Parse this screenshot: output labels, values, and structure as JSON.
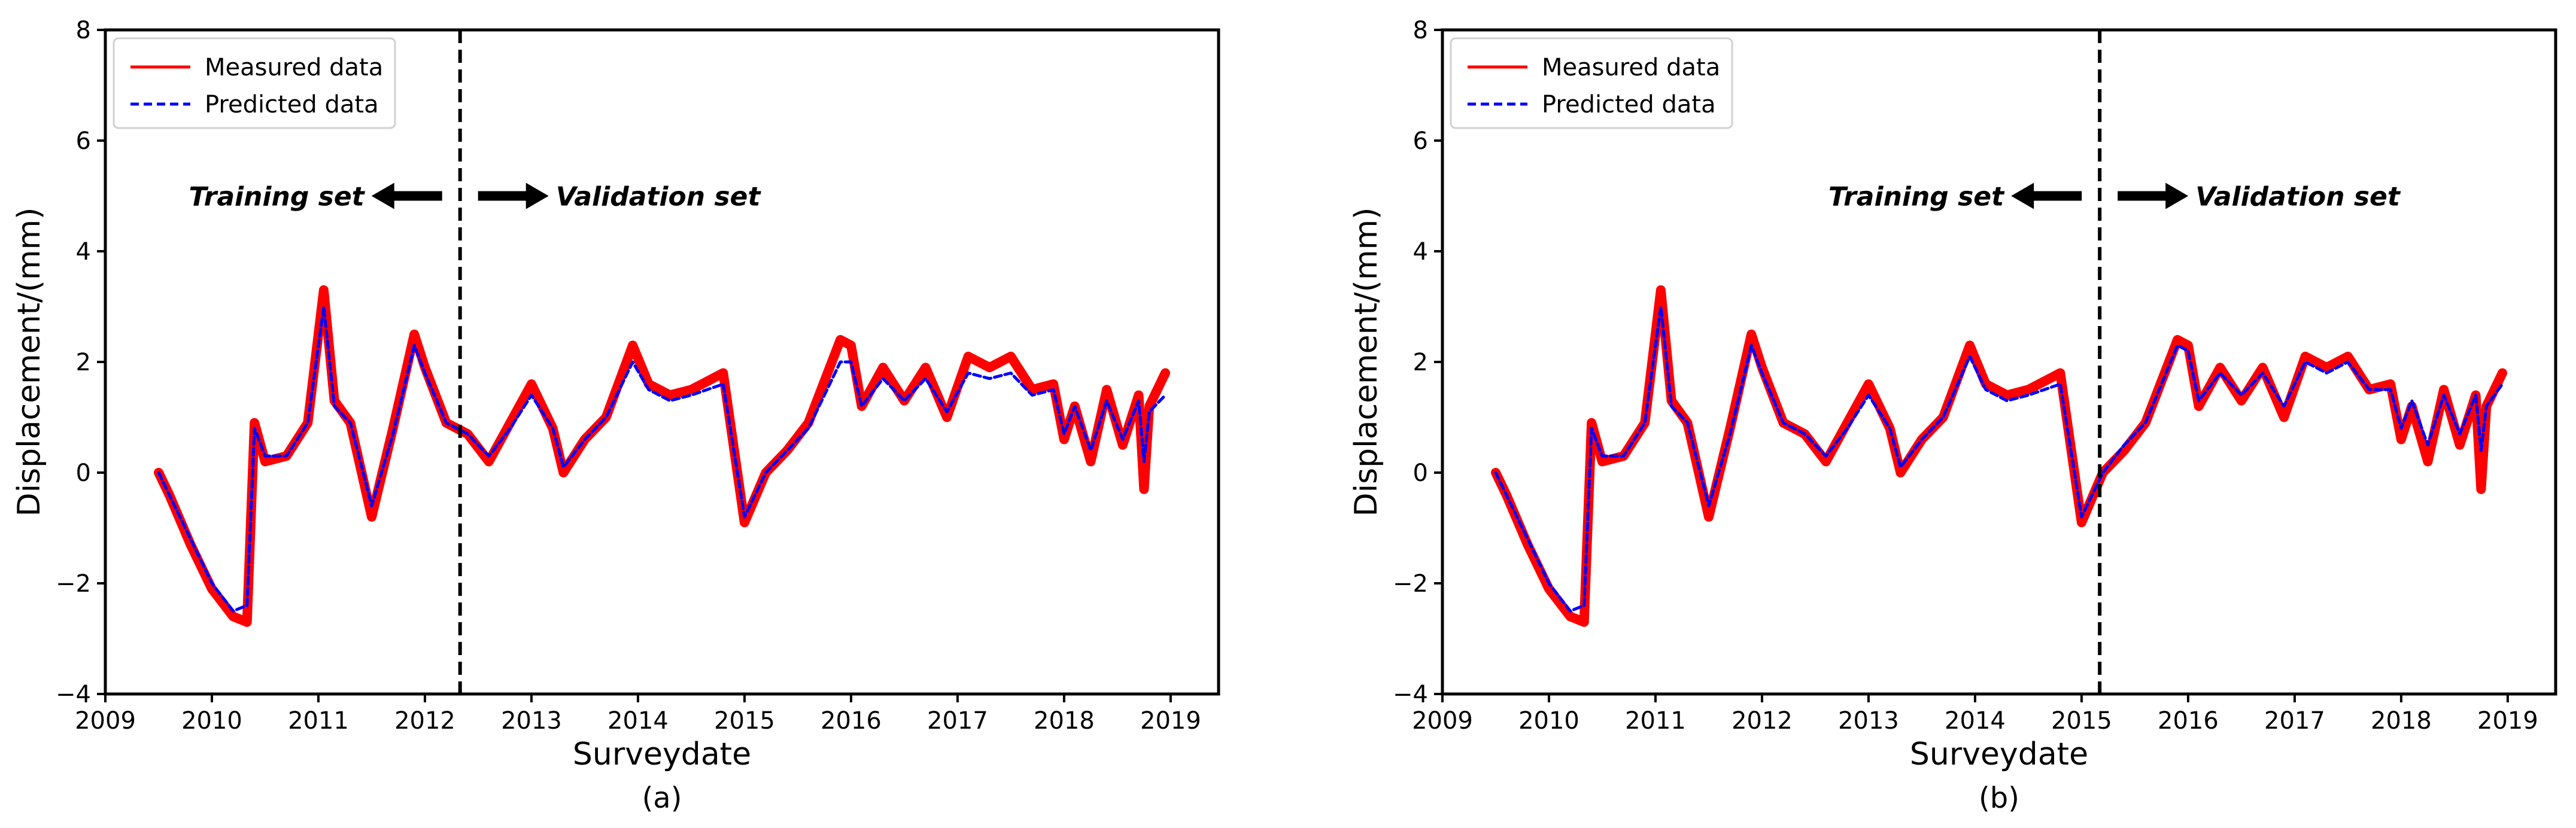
{
  "chart_data": [
    {
      "type": "line",
      "panel": "(a)",
      "caption": "(a)",
      "xlabel": "Surveydate",
      "ylabel": "Displacement/(mm)",
      "xlim": [
        2009,
        2019.45
      ],
      "ylim": [
        -4,
        8
      ],
      "xticks": [
        "2009",
        "2010",
        "2011",
        "2012",
        "2013",
        "2014",
        "2015",
        "2016",
        "2017",
        "2018",
        "2019"
      ],
      "yticks": [
        "−4",
        "−2",
        "0",
        "2",
        "4",
        "6",
        "8"
      ],
      "split_x": 2012.33,
      "legend": [
        "Measured data",
        "Predicted data"
      ],
      "annotations": {
        "left": "Training set",
        "right": "Validation set"
      },
      "series": [
        {
          "name": "Measured data",
          "color": "#ff0000",
          "style": "solid",
          "x": [
            2009.5,
            2009.6,
            2009.8,
            2010.0,
            2010.2,
            2010.33,
            2010.4,
            2010.5,
            2010.7,
            2010.9,
            2011.05,
            2011.15,
            2011.3,
            2011.5,
            2011.7,
            2011.9,
            2012.0,
            2012.2,
            2012.4,
            2012.6,
            2012.8,
            2013.0,
            2013.2,
            2013.3,
            2013.5,
            2013.7,
            2013.95,
            2014.1,
            2014.3,
            2014.5,
            2014.8,
            2015.0,
            2015.2,
            2015.4,
            2015.6,
            2015.9,
            2016.0,
            2016.1,
            2016.3,
            2016.5,
            2016.7,
            2016.9,
            2017.1,
            2017.3,
            2017.5,
            2017.7,
            2017.9,
            2018.0,
            2018.1,
            2018.25,
            2018.4,
            2018.55,
            2018.7,
            2018.75,
            2018.8,
            2018.95
          ],
          "y": [
            0.0,
            -0.4,
            -1.3,
            -2.1,
            -2.6,
            -2.7,
            0.9,
            0.2,
            0.3,
            0.9,
            3.3,
            1.3,
            0.9,
            -0.8,
            0.8,
            2.5,
            1.9,
            0.9,
            0.7,
            0.2,
            0.9,
            1.6,
            0.8,
            0.0,
            0.6,
            1.0,
            2.3,
            1.6,
            1.4,
            1.5,
            1.8,
            -0.9,
            0.0,
            0.4,
            0.9,
            2.4,
            2.3,
            1.2,
            1.9,
            1.3,
            1.9,
            1.0,
            2.1,
            1.9,
            2.1,
            1.5,
            1.6,
            0.6,
            1.2,
            0.2,
            1.5,
            0.5,
            1.4,
            -0.3,
            1.2,
            1.8
          ]
        },
        {
          "name": "Predicted data",
          "color": "#0000ff",
          "style": "dashed",
          "x": [
            2009.5,
            2009.6,
            2009.8,
            2010.0,
            2010.2,
            2010.33,
            2010.4,
            2010.5,
            2010.7,
            2010.9,
            2011.05,
            2011.15,
            2011.3,
            2011.5,
            2011.7,
            2011.9,
            2012.0,
            2012.2,
            2012.4,
            2012.6,
            2012.8,
            2013.0,
            2013.2,
            2013.3,
            2013.5,
            2013.7,
            2013.95,
            2014.1,
            2014.3,
            2014.5,
            2014.8,
            2015.0,
            2015.2,
            2015.4,
            2015.6,
            2015.9,
            2016.0,
            2016.1,
            2016.3,
            2016.5,
            2016.7,
            2016.9,
            2017.1,
            2017.3,
            2017.5,
            2017.7,
            2017.9,
            2018.0,
            2018.1,
            2018.25,
            2018.4,
            2018.55,
            2018.7,
            2018.75,
            2018.8,
            2018.95
          ],
          "y": [
            0.0,
            -0.4,
            -1.2,
            -2.0,
            -2.5,
            -2.4,
            0.8,
            0.3,
            0.3,
            0.9,
            3.0,
            1.2,
            0.9,
            -0.6,
            0.7,
            2.3,
            1.8,
            0.9,
            0.7,
            0.3,
            0.8,
            1.4,
            0.8,
            0.1,
            0.6,
            1.0,
            2.0,
            1.5,
            1.3,
            1.4,
            1.6,
            -0.8,
            0.0,
            0.4,
            0.8,
            2.0,
            2.0,
            1.2,
            1.7,
            1.3,
            1.7,
            1.1,
            1.8,
            1.7,
            1.8,
            1.4,
            1.5,
            0.7,
            1.2,
            0.4,
            1.3,
            0.6,
            1.3,
            0.2,
            1.1,
            1.4
          ]
        }
      ]
    },
    {
      "type": "line",
      "panel": "(b)",
      "caption": "(b)",
      "xlabel": "Surveydate",
      "ylabel": "Displacement/(mm)",
      "xlim": [
        2009,
        2019.45
      ],
      "ylim": [
        -4,
        8
      ],
      "xticks": [
        "2009",
        "2010",
        "2011",
        "2012",
        "2013",
        "2014",
        "2015",
        "2016",
        "2017",
        "2018",
        "2019"
      ],
      "yticks": [
        "−4",
        "−2",
        "0",
        "2",
        "4",
        "6",
        "8"
      ],
      "split_x": 2015.17,
      "legend": [
        "Measured data",
        "Predicted data"
      ],
      "annotations": {
        "left": "Training set",
        "right": "Validation set"
      },
      "series": [
        {
          "name": "Measured data",
          "color": "#ff0000",
          "style": "solid",
          "x": [
            2009.5,
            2009.6,
            2009.8,
            2010.0,
            2010.2,
            2010.33,
            2010.4,
            2010.5,
            2010.7,
            2010.9,
            2011.05,
            2011.15,
            2011.3,
            2011.5,
            2011.7,
            2011.9,
            2012.0,
            2012.2,
            2012.4,
            2012.6,
            2012.8,
            2013.0,
            2013.2,
            2013.3,
            2013.5,
            2013.7,
            2013.95,
            2014.1,
            2014.3,
            2014.5,
            2014.8,
            2015.0,
            2015.2,
            2015.4,
            2015.6,
            2015.9,
            2016.0,
            2016.1,
            2016.3,
            2016.5,
            2016.7,
            2016.9,
            2017.1,
            2017.3,
            2017.5,
            2017.7,
            2017.9,
            2018.0,
            2018.1,
            2018.25,
            2018.4,
            2018.55,
            2018.7,
            2018.75,
            2018.8,
            2018.95
          ],
          "y": [
            0.0,
            -0.4,
            -1.3,
            -2.1,
            -2.6,
            -2.7,
            0.9,
            0.2,
            0.3,
            0.9,
            3.3,
            1.3,
            0.9,
            -0.8,
            0.8,
            2.5,
            1.9,
            0.9,
            0.7,
            0.2,
            0.9,
            1.6,
            0.8,
            0.0,
            0.6,
            1.0,
            2.3,
            1.6,
            1.4,
            1.5,
            1.8,
            -0.9,
            0.0,
            0.4,
            0.9,
            2.4,
            2.3,
            1.2,
            1.9,
            1.3,
            1.9,
            1.0,
            2.1,
            1.9,
            2.1,
            1.5,
            1.6,
            0.6,
            1.2,
            0.2,
            1.5,
            0.5,
            1.4,
            -0.3,
            1.2,
            1.8
          ]
        },
        {
          "name": "Predicted data",
          "color": "#0000ff",
          "style": "dashed",
          "x": [
            2009.5,
            2009.6,
            2009.8,
            2010.0,
            2010.2,
            2010.33,
            2010.4,
            2010.5,
            2010.7,
            2010.9,
            2011.05,
            2011.15,
            2011.3,
            2011.5,
            2011.7,
            2011.9,
            2012.0,
            2012.2,
            2012.4,
            2012.6,
            2012.8,
            2013.0,
            2013.2,
            2013.3,
            2013.5,
            2013.7,
            2013.95,
            2014.1,
            2014.3,
            2014.5,
            2014.8,
            2015.0,
            2015.2,
            2015.4,
            2015.6,
            2015.9,
            2016.0,
            2016.1,
            2016.3,
            2016.5,
            2016.7,
            2016.9,
            2017.1,
            2017.3,
            2017.5,
            2017.7,
            2017.9,
            2018.0,
            2018.1,
            2018.25,
            2018.4,
            2018.55,
            2018.7,
            2018.75,
            2018.8,
            2018.95
          ],
          "y": [
            0.0,
            -0.4,
            -1.2,
            -2.0,
            -2.5,
            -2.4,
            0.8,
            0.3,
            0.3,
            0.9,
            3.0,
            1.2,
            0.9,
            -0.6,
            0.7,
            2.3,
            1.8,
            0.9,
            0.7,
            0.3,
            0.8,
            1.4,
            0.8,
            0.1,
            0.6,
            1.0,
            2.1,
            1.5,
            1.3,
            1.4,
            1.6,
            -0.8,
            0.0,
            0.5,
            0.9,
            2.3,
            2.2,
            1.3,
            1.8,
            1.4,
            1.8,
            1.2,
            2.0,
            1.8,
            2.0,
            1.5,
            1.5,
            0.8,
            1.3,
            0.5,
            1.4,
            0.7,
            1.4,
            0.4,
            1.2,
            1.6
          ]
        }
      ]
    }
  ]
}
